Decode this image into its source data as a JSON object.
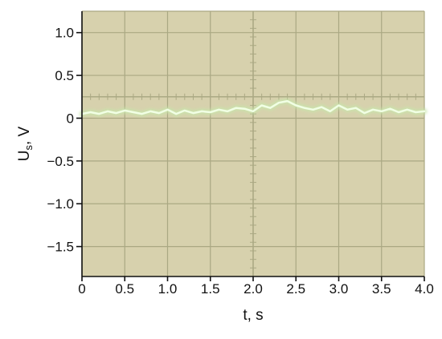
{
  "chart_data": {
    "type": "line",
    "xlabel": "t, s",
    "ylabel_main": "U",
    "ylabel_sub": "s",
    "ylabel_suffix": ", V",
    "xlim": [
      0,
      4.0
    ],
    "ylim": [
      -1.85,
      1.25
    ],
    "x_ticks": [
      0,
      0.5,
      1.0,
      1.5,
      2.0,
      2.5,
      3.0,
      3.5,
      4.0
    ],
    "x_tick_labels": [
      "0",
      "0.5",
      "1.0",
      "1.5",
      "2.0",
      "2.5",
      "3.0",
      "3.5",
      "4.0"
    ],
    "y_ticks": [
      1.0,
      0.5,
      0,
      -0.5,
      -1.0,
      -1.5
    ],
    "y_tick_labels": [
      "1.0",
      "0.5",
      "0",
      "−0.5",
      "−1.0",
      "−1.5"
    ],
    "grid": true,
    "series": [
      {
        "x": [
          0,
          0.1,
          0.2,
          0.3,
          0.4,
          0.5,
          0.6,
          0.7,
          0.8,
          0.9,
          1.0,
          1.1,
          1.2,
          1.3,
          1.4,
          1.5,
          1.6,
          1.7,
          1.8,
          1.9,
          2.0,
          2.1,
          2.2,
          2.3,
          2.4,
          2.5,
          2.6,
          2.7,
          2.8,
          2.9,
          3.0,
          3.1,
          3.2,
          3.3,
          3.4,
          3.5,
          3.6,
          3.7,
          3.8,
          3.9,
          4.0
        ],
        "y": [
          0.05,
          0.07,
          0.05,
          0.08,
          0.06,
          0.09,
          0.07,
          0.05,
          0.08,
          0.06,
          0.1,
          0.05,
          0.09,
          0.06,
          0.08,
          0.07,
          0.1,
          0.08,
          0.12,
          0.11,
          0.08,
          0.15,
          0.12,
          0.18,
          0.2,
          0.15,
          0.12,
          0.1,
          0.13,
          0.08,
          0.15,
          0.1,
          0.12,
          0.06,
          0.1,
          0.08,
          0.11,
          0.07,
          0.1,
          0.07,
          0.08
        ]
      }
    ],
    "colors": {
      "screen": "#d7d1ad",
      "grid": "#aaa883",
      "center_axis": "#aba984",
      "trace": "#f1ffe4",
      "trace_glow": "#c7e6ab",
      "axis": "#111111"
    }
  }
}
